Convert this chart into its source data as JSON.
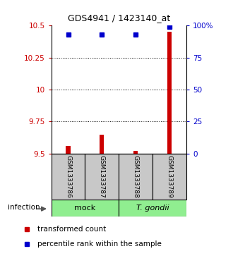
{
  "title": "GDS4941 / 1423140_at",
  "samples": [
    "GSM1333786",
    "GSM1333787",
    "GSM1333788",
    "GSM1333789"
  ],
  "transformed_counts": [
    9.56,
    9.65,
    9.52,
    10.45
  ],
  "percentile_ranks": [
    93,
    93,
    93,
    99
  ],
  "ylim_left": [
    9.5,
    10.5
  ],
  "yticks_left": [
    9.5,
    9.75,
    10.0,
    10.25,
    10.5
  ],
  "ytick_labels_left": [
    "9.5",
    "9.75",
    "10",
    "10.25",
    "10.5"
  ],
  "ylim_right": [
    0,
    100
  ],
  "yticks_right": [
    0,
    25,
    50,
    75,
    100
  ],
  "ytick_labels_right": [
    "0",
    "25",
    "50",
    "75",
    "100%"
  ],
  "bar_base": 9.5,
  "red_color": "#cc0000",
  "blue_color": "#0000cc",
  "legend_items": [
    "transformed count",
    "percentile rank within the sample"
  ],
  "infection_label": "infection",
  "grid_yticks": [
    9.75,
    10.0,
    10.25
  ],
  "mock_color": "#90EE90",
  "sample_box_color": "#c8c8c8"
}
